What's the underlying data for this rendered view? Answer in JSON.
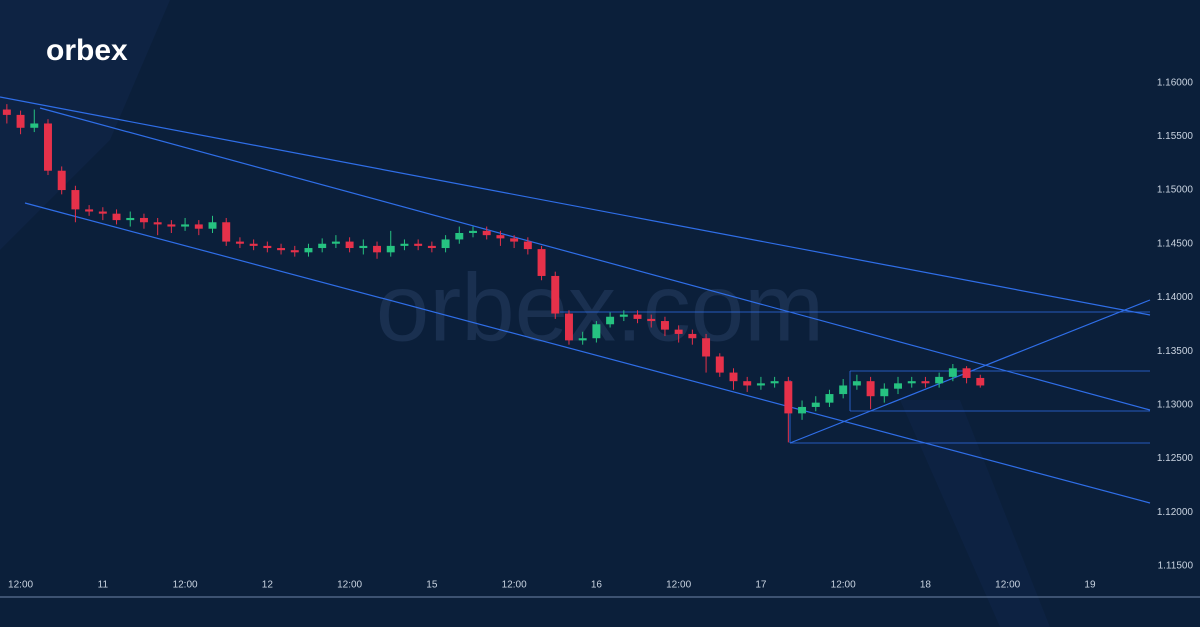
{
  "logo": "orbex",
  "watermark": "orbex.com",
  "chart_data": {
    "type": "candlestick",
    "up_color": "#26c281",
    "down_color": "#e6314a",
    "grid": false,
    "x": [
      1,
      3,
      5,
      7,
      9,
      11,
      13,
      15,
      17,
      19,
      21,
      23,
      25,
      27,
      29,
      31,
      33,
      35,
      37,
      39,
      41,
      43,
      45,
      47,
      49,
      51,
      53,
      55,
      57,
      59,
      61,
      63,
      65,
      67,
      69,
      71,
      73,
      75,
      77,
      79,
      81,
      83,
      85,
      87,
      89,
      91,
      93,
      95,
      97,
      99,
      101,
      103,
      105,
      107,
      109,
      111,
      113,
      115,
      117,
      119,
      121,
      123,
      125,
      127,
      129,
      131,
      133,
      135,
      137,
      139,
      141,
      143
    ],
    "open": [
      1.1575,
      1.157,
      1.1558,
      1.1562,
      1.1518,
      1.15,
      1.1482,
      1.148,
      1.1478,
      1.1472,
      1.1474,
      1.147,
      1.1468,
      1.1466,
      1.1468,
      1.1464,
      1.147,
      1.1452,
      1.145,
      1.1448,
      1.1446,
      1.1444,
      1.1442,
      1.1446,
      1.145,
      1.1452,
      1.1446,
      1.1448,
      1.1442,
      1.1448,
      1.145,
      1.1448,
      1.1446,
      1.1454,
      1.146,
      1.1462,
      1.1458,
      1.1455,
      1.1452,
      1.1445,
      1.142,
      1.1385,
      1.136,
      1.1362,
      1.1375,
      1.1382,
      1.1384,
      1.138,
      1.1378,
      1.137,
      1.1366,
      1.1362,
      1.1345,
      1.133,
      1.1322,
      1.1318,
      1.132,
      1.1322,
      1.1292,
      1.1298,
      1.1302,
      1.131,
      1.1318,
      1.1322,
      1.1308,
      1.1315,
      1.132,
      1.1322,
      1.132,
      1.1326,
      1.1334,
      1.1325
    ],
    "high": [
      1.158,
      1.1574,
      1.1575,
      1.1566,
      1.1522,
      1.1504,
      1.1486,
      1.1484,
      1.1482,
      1.148,
      1.1478,
      1.1474,
      1.1472,
      1.1474,
      1.1472,
      1.1476,
      1.1474,
      1.1456,
      1.1454,
      1.1452,
      1.145,
      1.1448,
      1.145,
      1.1455,
      1.1458,
      1.1456,
      1.1454,
      1.1452,
      1.1462,
      1.1454,
      1.1454,
      1.1452,
      1.1458,
      1.1466,
      1.1466,
      1.1466,
      1.1462,
      1.1458,
      1.1456,
      1.1448,
      1.1424,
      1.1388,
      1.1368,
      1.1378,
      1.1386,
      1.1388,
      1.1388,
      1.1384,
      1.1382,
      1.1374,
      1.137,
      1.1366,
      1.1348,
      1.1334,
      1.1326,
      1.1326,
      1.1326,
      1.1326,
      1.1304,
      1.1308,
      1.1314,
      1.1324,
      1.1328,
      1.1326,
      1.132,
      1.1326,
      1.1326,
      1.1326,
      1.133,
      1.1338,
      1.1336,
      1.1328
    ],
    "low": [
      1.1562,
      1.1552,
      1.1554,
      1.1514,
      1.1496,
      1.147,
      1.1476,
      1.1472,
      1.1468,
      1.1466,
      1.1464,
      1.1458,
      1.146,
      1.1462,
      1.1458,
      1.146,
      1.1448,
      1.1446,
      1.1444,
      1.1442,
      1.144,
      1.1438,
      1.1438,
      1.1442,
      1.1446,
      1.1442,
      1.144,
      1.1436,
      1.1438,
      1.1444,
      1.1444,
      1.1442,
      1.1442,
      1.145,
      1.1456,
      1.1454,
      1.1448,
      1.1446,
      1.144,
      1.1416,
      1.138,
      1.1356,
      1.1356,
      1.1358,
      1.1372,
      1.1378,
      1.1376,
      1.1372,
      1.1364,
      1.1358,
      1.1356,
      1.133,
      1.1326,
      1.1314,
      1.1312,
      1.1314,
      1.1316,
      1.1265,
      1.1286,
      1.1294,
      1.1298,
      1.1306,
      1.1314,
      1.1296,
      1.1302,
      1.131,
      1.1316,
      1.1316,
      1.1316,
      1.1322,
      1.132,
      1.1316
    ],
    "close": [
      1.157,
      1.1558,
      1.1562,
      1.1518,
      1.15,
      1.1482,
      1.148,
      1.1478,
      1.1472,
      1.1474,
      1.147,
      1.1468,
      1.1466,
      1.1468,
      1.1464,
      1.147,
      1.1452,
      1.145,
      1.1448,
      1.1446,
      1.1444,
      1.1442,
      1.1446,
      1.145,
      1.1452,
      1.1446,
      1.1448,
      1.1442,
      1.1448,
      1.145,
      1.1448,
      1.1446,
      1.1454,
      1.146,
      1.1462,
      1.1458,
      1.1455,
      1.1452,
      1.1445,
      1.142,
      1.1385,
      1.136,
      1.1362,
      1.1375,
      1.1382,
      1.1384,
      1.138,
      1.1378,
      1.137,
      1.1366,
      1.1362,
      1.1345,
      1.133,
      1.1322,
      1.1318,
      1.132,
      1.1322,
      1.1292,
      1.1298,
      1.1302,
      1.131,
      1.1318,
      1.1322,
      1.1308,
      1.1315,
      1.132,
      1.1322,
      1.132,
      1.1326,
      1.1334,
      1.1325,
      1.1318
    ],
    "xlim": [
      0,
      166.3
    ],
    "xticks": [
      {
        "value": 3,
        "label": "12:00"
      },
      {
        "value": 15,
        "label": "11"
      },
      {
        "value": 27,
        "label": "12:00"
      },
      {
        "value": 39,
        "label": "12"
      },
      {
        "value": 51,
        "label": "12:00"
      },
      {
        "value": 63,
        "label": "15"
      },
      {
        "value": 75,
        "label": "12:00"
      },
      {
        "value": 87,
        "label": "16"
      },
      {
        "value": 99,
        "label": "12:00"
      },
      {
        "value": 111,
        "label": "17"
      },
      {
        "value": 123,
        "label": "12:00"
      },
      {
        "value": 135,
        "label": "18"
      },
      {
        "value": 147,
        "label": "12:00"
      },
      {
        "value": 159,
        "label": "19"
      }
    ],
    "ylim": [
      1.1121,
      1.1677
    ],
    "yticks": [
      {
        "value": 1.16,
        "label": "1.16000"
      },
      {
        "value": 1.155,
        "label": "1.15500"
      },
      {
        "value": 1.15,
        "label": "1.15000"
      },
      {
        "value": 1.145,
        "label": "1.14500"
      },
      {
        "value": 1.14,
        "label": "1.14000"
      },
      {
        "value": 1.135,
        "label": "1.13500"
      },
      {
        "value": 1.13,
        "label": "1.13000"
      },
      {
        "value": 1.125,
        "label": "1.12500"
      },
      {
        "value": 1.12,
        "label": "1.12000"
      },
      {
        "value": 1.115,
        "label": "1.11500"
      }
    ]
  }
}
